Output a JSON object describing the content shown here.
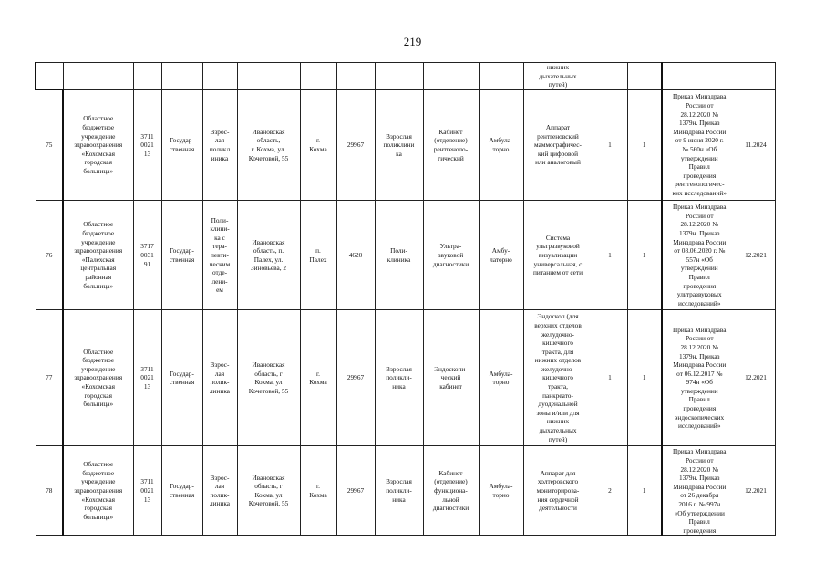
{
  "page_number": "219",
  "top_partial_row": {
    "equipment": "нижних\nдыхательных\nпутей)"
  },
  "rows": [
    {
      "num": "75",
      "organization": "Областное\nбюджетное\nучреждение\nздравоохранения\n«Кохомская\nгородская\nбольница»",
      "code": "3711\n0021\n13",
      "ownership": "Государ-\nственная",
      "unit_type": "Взрос-\nлая\nполикл\nиника",
      "address": "Ивановская\nобласть,\nг. Кохма, ул.\nКочетовой, 55",
      "locality": "г.\nКохма",
      "population": "29967",
      "facility": "Взрослая\nполиклини\nка",
      "department": "Кабинет\n(отделение)\nрентгеноло-\nгический",
      "care_form": "Амбула-\nторно",
      "equipment": "Аппарат\nрентгеновский\nмаммографичес-\nкий цифровой\nили аналоговый",
      "qty_required": "1",
      "qty_planned": "1",
      "regulation": "Приказ Минздрава\nРоссии от\n28.12.2020 №\n1379н. Приказ\nМинздрава России\nот 9 июня 2020 г.\n№ 560н «Об\nутверждении\nПравил\nпроведения\nрентгенологичес-\nких исследований»",
      "date": "11.2024"
    },
    {
      "num": "76",
      "organization": "Областное\nбюджетное\nучреждение\nздравоохранения\n«Палехская\nцентральная\nрайонная\nбольница»",
      "code": "3717\n0031\n91",
      "ownership": "Государ-\nственная",
      "unit_type": "Поли-\nклини-\nка с\nтера-\nпевти-\nческим\nотде-\nлени-\nем",
      "address": "Ивановская\nобласть, п.\nПалех, ул.\nЗиновьева, 2",
      "locality": "п.\nПалех",
      "population": "4620",
      "facility": "Поли-\nклиника",
      "department": "Ультра-\nзвуковой\nдиагностики",
      "care_form": "Амбу-\nлаторно",
      "equipment": "Система\nультразвуковой\nвизуализации\nуниверсальная, с\nпитанием от сети",
      "qty_required": "1",
      "qty_planned": "1",
      "regulation": "Приказ Минздрава\nРоссии от\n28.12.2020 №\n1379н. Приказ\nМинздрава России\nот 08.06.2020 г. №\n557н «Об\nутверждении\nПравил\nпроведения\nультразвуковых\nисследований»",
      "date": "12.2021"
    },
    {
      "num": "77",
      "organization": "Областное\nбюджетное\nучреждение\nздравоохранения\n«Кохомская\nгородская\nбольница»",
      "code": "3711\n0021\n13",
      "ownership": "Государ-\nственная",
      "unit_type": "Взрос-\nлая\nполик-\nлиника",
      "address": "Ивановская\nобласть, г\nКохма, ул\nКочетовой, 55",
      "locality": "г.\nКохма",
      "population": "29967",
      "facility": "Взрослая\nполикли-\nника",
      "department": "Эндоскопи-\nческий\nкабинет",
      "care_form": "Амбула-\nторно",
      "equipment": "Эндоскоп (для\nверхних отделов\nжелудочно-\nкишечного\nтракта, для\nнижних отделов\nжелудочно-\nкишечного\nтракта,\nпанкреато-\nдуоденальной\nзоны и/или для\nнижних\nдыхательных\nпутей)",
      "qty_required": "1",
      "qty_planned": "1",
      "regulation": "Приказ Минздрава\nРоссии от\n28.12.2020 №\n1379н. Приказ\nМинздрава России\nот 06.12.2017 №\n974н «Об\nутверждении\nПравил\nпроведения\nэндоскопических\nисследований»",
      "date": "12.2021"
    },
    {
      "num": "78",
      "organization": "Областное\nбюджетное\nучреждение\nздравоохранения\n«Кохомская\nгородская\nбольница»",
      "code": "3711\n0021\n13",
      "ownership": "Государ-\nственная",
      "unit_type": "Взрос-\nлая\nполик-\nлиника",
      "address": "Ивановская\nобласть, г\nКохма, ул\nКочетовой, 55",
      "locality": "г.\nКохма",
      "population": "29967",
      "facility": "Взрослая\nполикли-\nника",
      "department": "Кабинет\n(отделение)\nфункциона-\nльной\nдиагностики",
      "care_form": "Амбула-\nторно",
      "equipment": "Аппарат для\nхолтеровского\nмониторирова-\nния сердечной\nдеятельности",
      "qty_required": "2",
      "qty_planned": "1",
      "regulation": "Приказ Минздрава\nРоссии от\n28.12.2020 №\n1379н. Приказ\nМинздрава России\nот 26 декабря\n2016 г. № 997н\n«Об утверждении\nПравил\nпроведения",
      "date": "12.2021"
    }
  ]
}
